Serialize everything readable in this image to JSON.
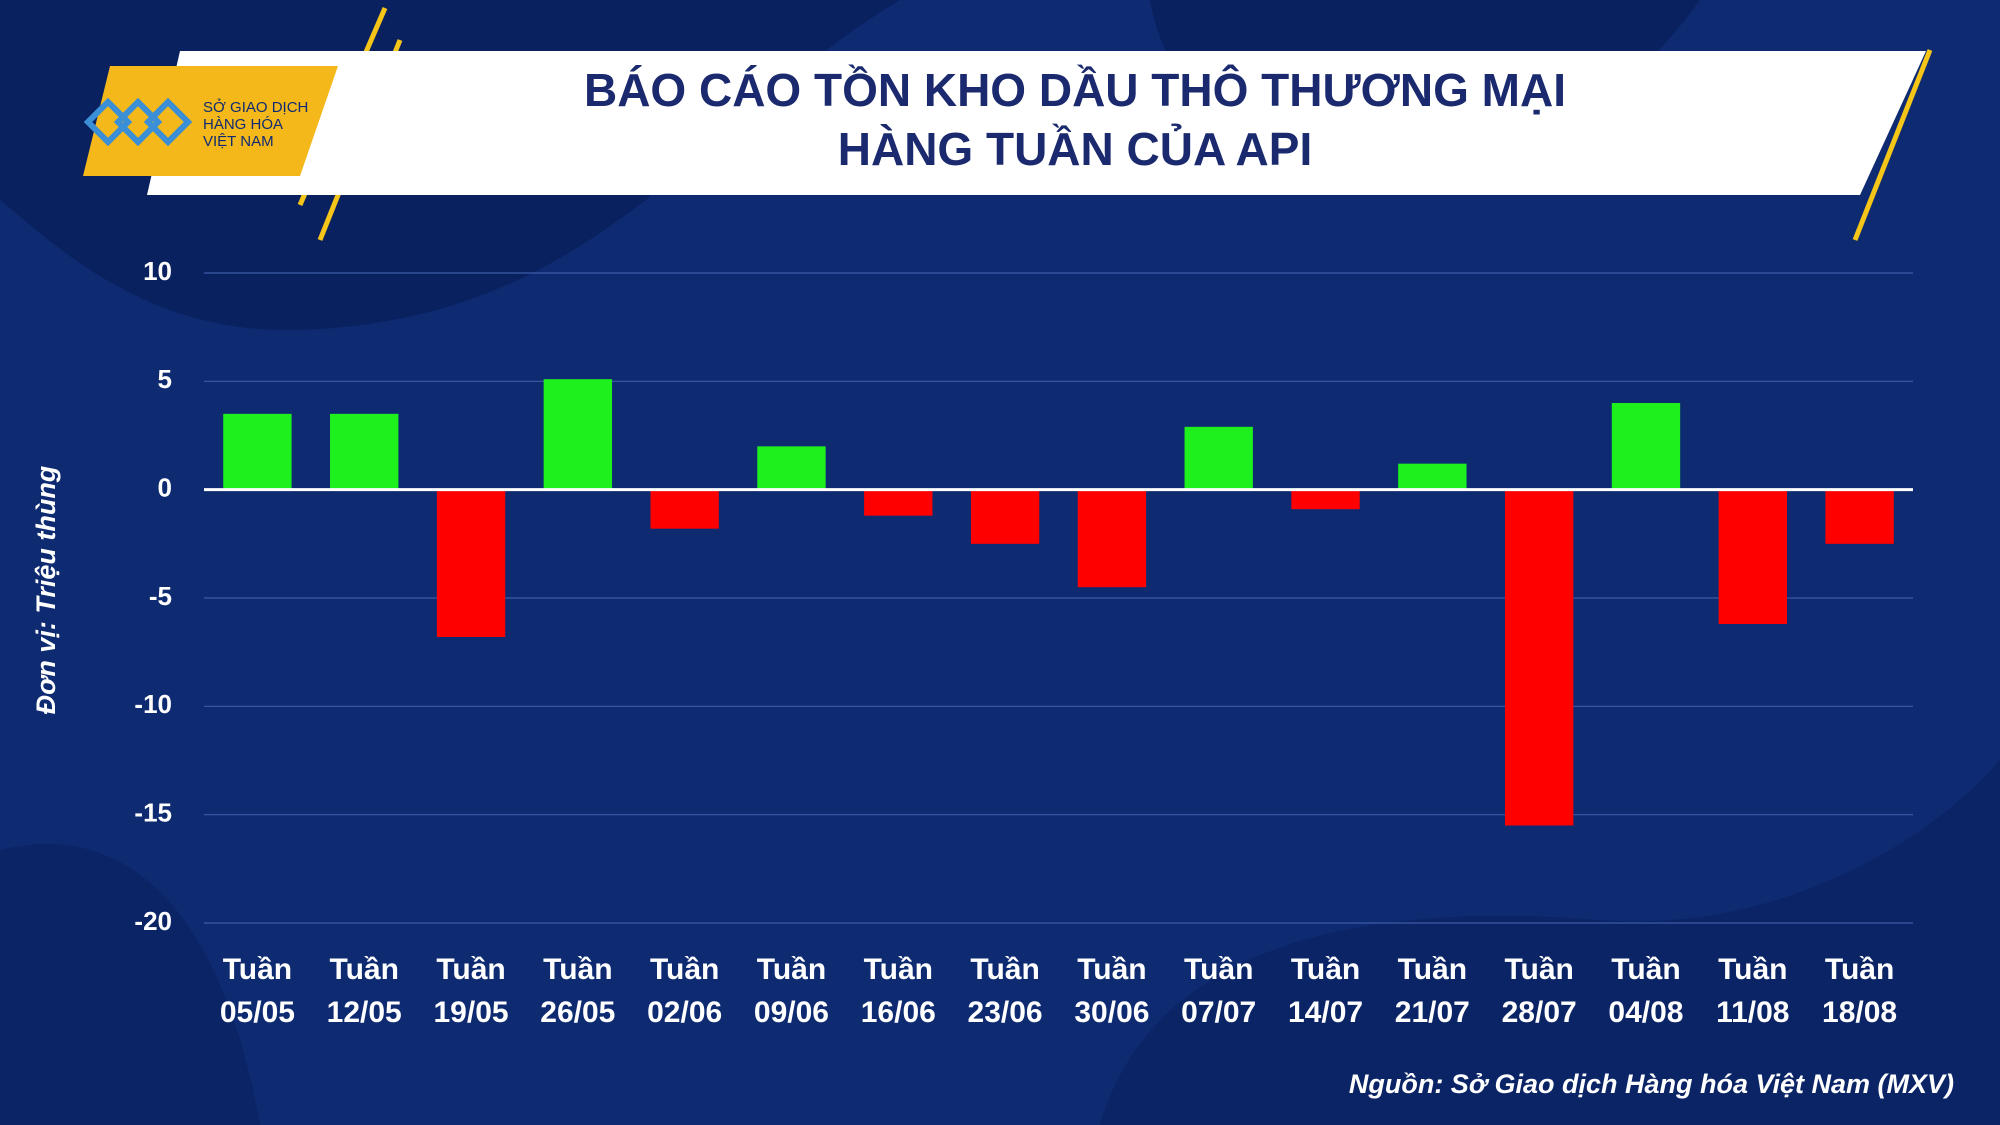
{
  "chart_data": {
    "type": "bar",
    "title_lines": [
      "BÁO CÁO TỒN KHO DẦU THÔ THƯƠNG MẠI",
      "HÀNG TUẦN CỦA API"
    ],
    "logo_lines": [
      "SỞ GIAO DỊCH",
      "HÀNG HÓA",
      "VIỆT NAM"
    ],
    "y_label": "Đơn vị: Triệu thùng",
    "source": "Nguồn: Sở Giao dịch Hàng hóa Việt Nam (MXV)",
    "categories": [
      "Tuần 05/05",
      "Tuần 12/05",
      "Tuần 19/05",
      "Tuần 26/05",
      "Tuần 02/06",
      "Tuần 09/06",
      "Tuần 16/06",
      "Tuần 23/06",
      "Tuần 30/06",
      "Tuần 07/07",
      "Tuần 14/07",
      "Tuần 21/07",
      "Tuần 28/07",
      "Tuần 04/08",
      "Tuần 11/08",
      "Tuần 18/08"
    ],
    "values": [
      3.5,
      3.5,
      -6.8,
      5.1,
      -1.8,
      2.0,
      -1.2,
      -2.5,
      -4.5,
      2.9,
      -0.9,
      1.2,
      -15.5,
      4.0,
      -6.2,
      -2.5
    ],
    "color_positive": "#1ef01e",
    "color_negative": "#ff0000",
    "ylim": [
      -20,
      10
    ],
    "yticks": [
      -20,
      -15,
      -10,
      -5,
      0,
      5,
      10
    ],
    "grid": true
  }
}
